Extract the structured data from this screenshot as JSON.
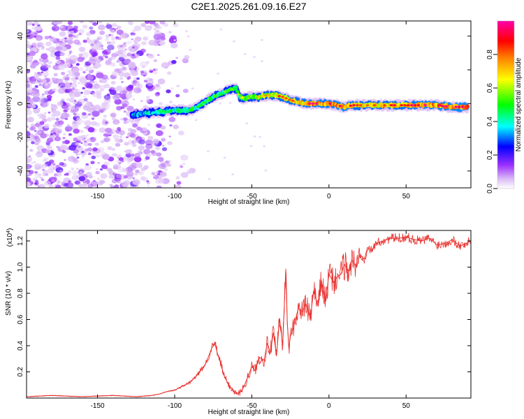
{
  "chart_data": [
    {
      "type": "heatmap",
      "title": "C2E1.2025.261.09.16.E27",
      "xlabel": "Height of straight line (km)",
      "ylabel": "Frequency (Hz)",
      "xlim": [
        -196,
        92
      ],
      "ylim": [
        -50,
        49
      ],
      "xticks": [
        -150,
        -100,
        -50,
        0,
        50
      ],
      "yticks": [
        40,
        20,
        0,
        -20,
        -40
      ],
      "colorbar": {
        "label": "Normalized spectral amplitude",
        "range": [
          0,
          1
        ],
        "ticks": [
          0.0,
          0.2,
          0.4,
          0.6,
          0.8
        ],
        "tick_labels": [
          "0.0",
          "0.2",
          "0.4",
          "0.6",
          "0.8"
        ],
        "colors": [
          "#ffffff",
          "#d9b8f5",
          "#9b30ff",
          "#0000ff",
          "#00ffff",
          "#00ff00",
          "#ffff00",
          "#ff8000",
          "#ff0000",
          "#ff00aa"
        ]
      },
      "noise_region_x": [
        -196,
        -100
      ],
      "ridge": {
        "x": [
          -128,
          -120,
          -110,
          -100,
          -95,
          -90,
          -85,
          -80,
          -75,
          -70,
          -65,
          -60,
          -58,
          -55,
          -50,
          -45,
          -40,
          -35,
          -30,
          -25,
          -20,
          -15,
          -10,
          -5,
          0,
          5,
          10,
          15,
          20,
          30,
          40,
          50,
          60,
          70,
          80,
          90
        ],
        "freq": [
          -7,
          -6,
          -5,
          -4,
          -4,
          -4,
          -2,
          1,
          4,
          6,
          8,
          9,
          4,
          3,
          4,
          4,
          5,
          5,
          4,
          2,
          1,
          0,
          0,
          0,
          0,
          -1,
          -2,
          -1,
          -1,
          -1,
          -1,
          -1,
          -1,
          -1,
          -2,
          -2
        ],
        "amplitude": [
          0.3,
          0.35,
          0.38,
          0.4,
          0.42,
          0.45,
          0.48,
          0.5,
          0.52,
          0.5,
          0.48,
          0.45,
          0.55,
          0.6,
          0.62,
          0.66,
          0.7,
          0.75,
          0.78,
          0.8,
          0.82,
          0.85,
          0.95,
          0.9,
          0.88,
          0.95,
          0.9,
          0.85,
          0.8,
          0.8,
          0.82,
          0.85,
          0.9,
          0.92,
          0.95,
          0.95
        ]
      }
    },
    {
      "type": "line",
      "xlabel": "Height of straight line (km)",
      "ylabel": "SNR (10 * v/v)",
      "multiplier_label": "(x10",
      "multiplier_exp": "4",
      "multiplier_close": ")",
      "xlim": [
        -196,
        92
      ],
      "ylim": [
        0,
        1.28
      ],
      "xticks": [
        -150,
        -100,
        -50,
        0,
        50
      ],
      "yticks": [
        0.2,
        0.4,
        0.6,
        0.8,
        1.0,
        1.2
      ],
      "ytick_labels": [
        "0.2",
        "0.4",
        "0.6",
        "0.8",
        "1.0",
        "1.2"
      ],
      "series": [
        {
          "name": "SNR",
          "color": "#e8312e",
          "x": [
            -196,
            -180,
            -160,
            -140,
            -125,
            -115,
            -110,
            -105,
            -100,
            -95,
            -90,
            -85,
            -80,
            -78,
            -76,
            -74,
            -72,
            -70,
            -68,
            -65,
            -62,
            -60,
            -57,
            -55,
            -52,
            -50,
            -48,
            -45,
            -42,
            -40,
            -38,
            -36,
            -34,
            -32,
            -30,
            -28,
            -27,
            -26,
            -25,
            -23,
            -20,
            -17,
            -15,
            -12,
            -10,
            -7,
            -5,
            -2,
            0,
            3,
            5,
            8,
            10,
            13,
            15,
            18,
            20,
            23,
            25,
            28,
            30,
            35,
            40,
            45,
            50,
            55,
            60,
            65,
            70,
            75,
            80,
            85,
            92
          ],
          "y": [
            0.01,
            0.02,
            0.01,
            0.02,
            0.01,
            0.02,
            0.03,
            0.05,
            0.06,
            0.09,
            0.12,
            0.18,
            0.26,
            0.32,
            0.38,
            0.42,
            0.33,
            0.26,
            0.17,
            0.1,
            0.06,
            0.03,
            0.05,
            0.09,
            0.18,
            0.24,
            0.21,
            0.31,
            0.29,
            0.42,
            0.35,
            0.5,
            0.32,
            0.61,
            0.4,
            0.98,
            0.58,
            0.38,
            0.47,
            0.54,
            0.68,
            0.66,
            0.72,
            0.61,
            0.82,
            0.7,
            0.9,
            0.74,
            0.95,
            0.88,
            0.92,
            0.95,
            1.02,
            0.97,
            1.05,
            1.0,
            1.1,
            1.06,
            1.15,
            1.12,
            1.18,
            1.2,
            1.22,
            1.22,
            1.23,
            1.21,
            1.2,
            1.22,
            1.17,
            1.18,
            1.21,
            1.16,
            1.2
          ]
        }
      ]
    }
  ]
}
